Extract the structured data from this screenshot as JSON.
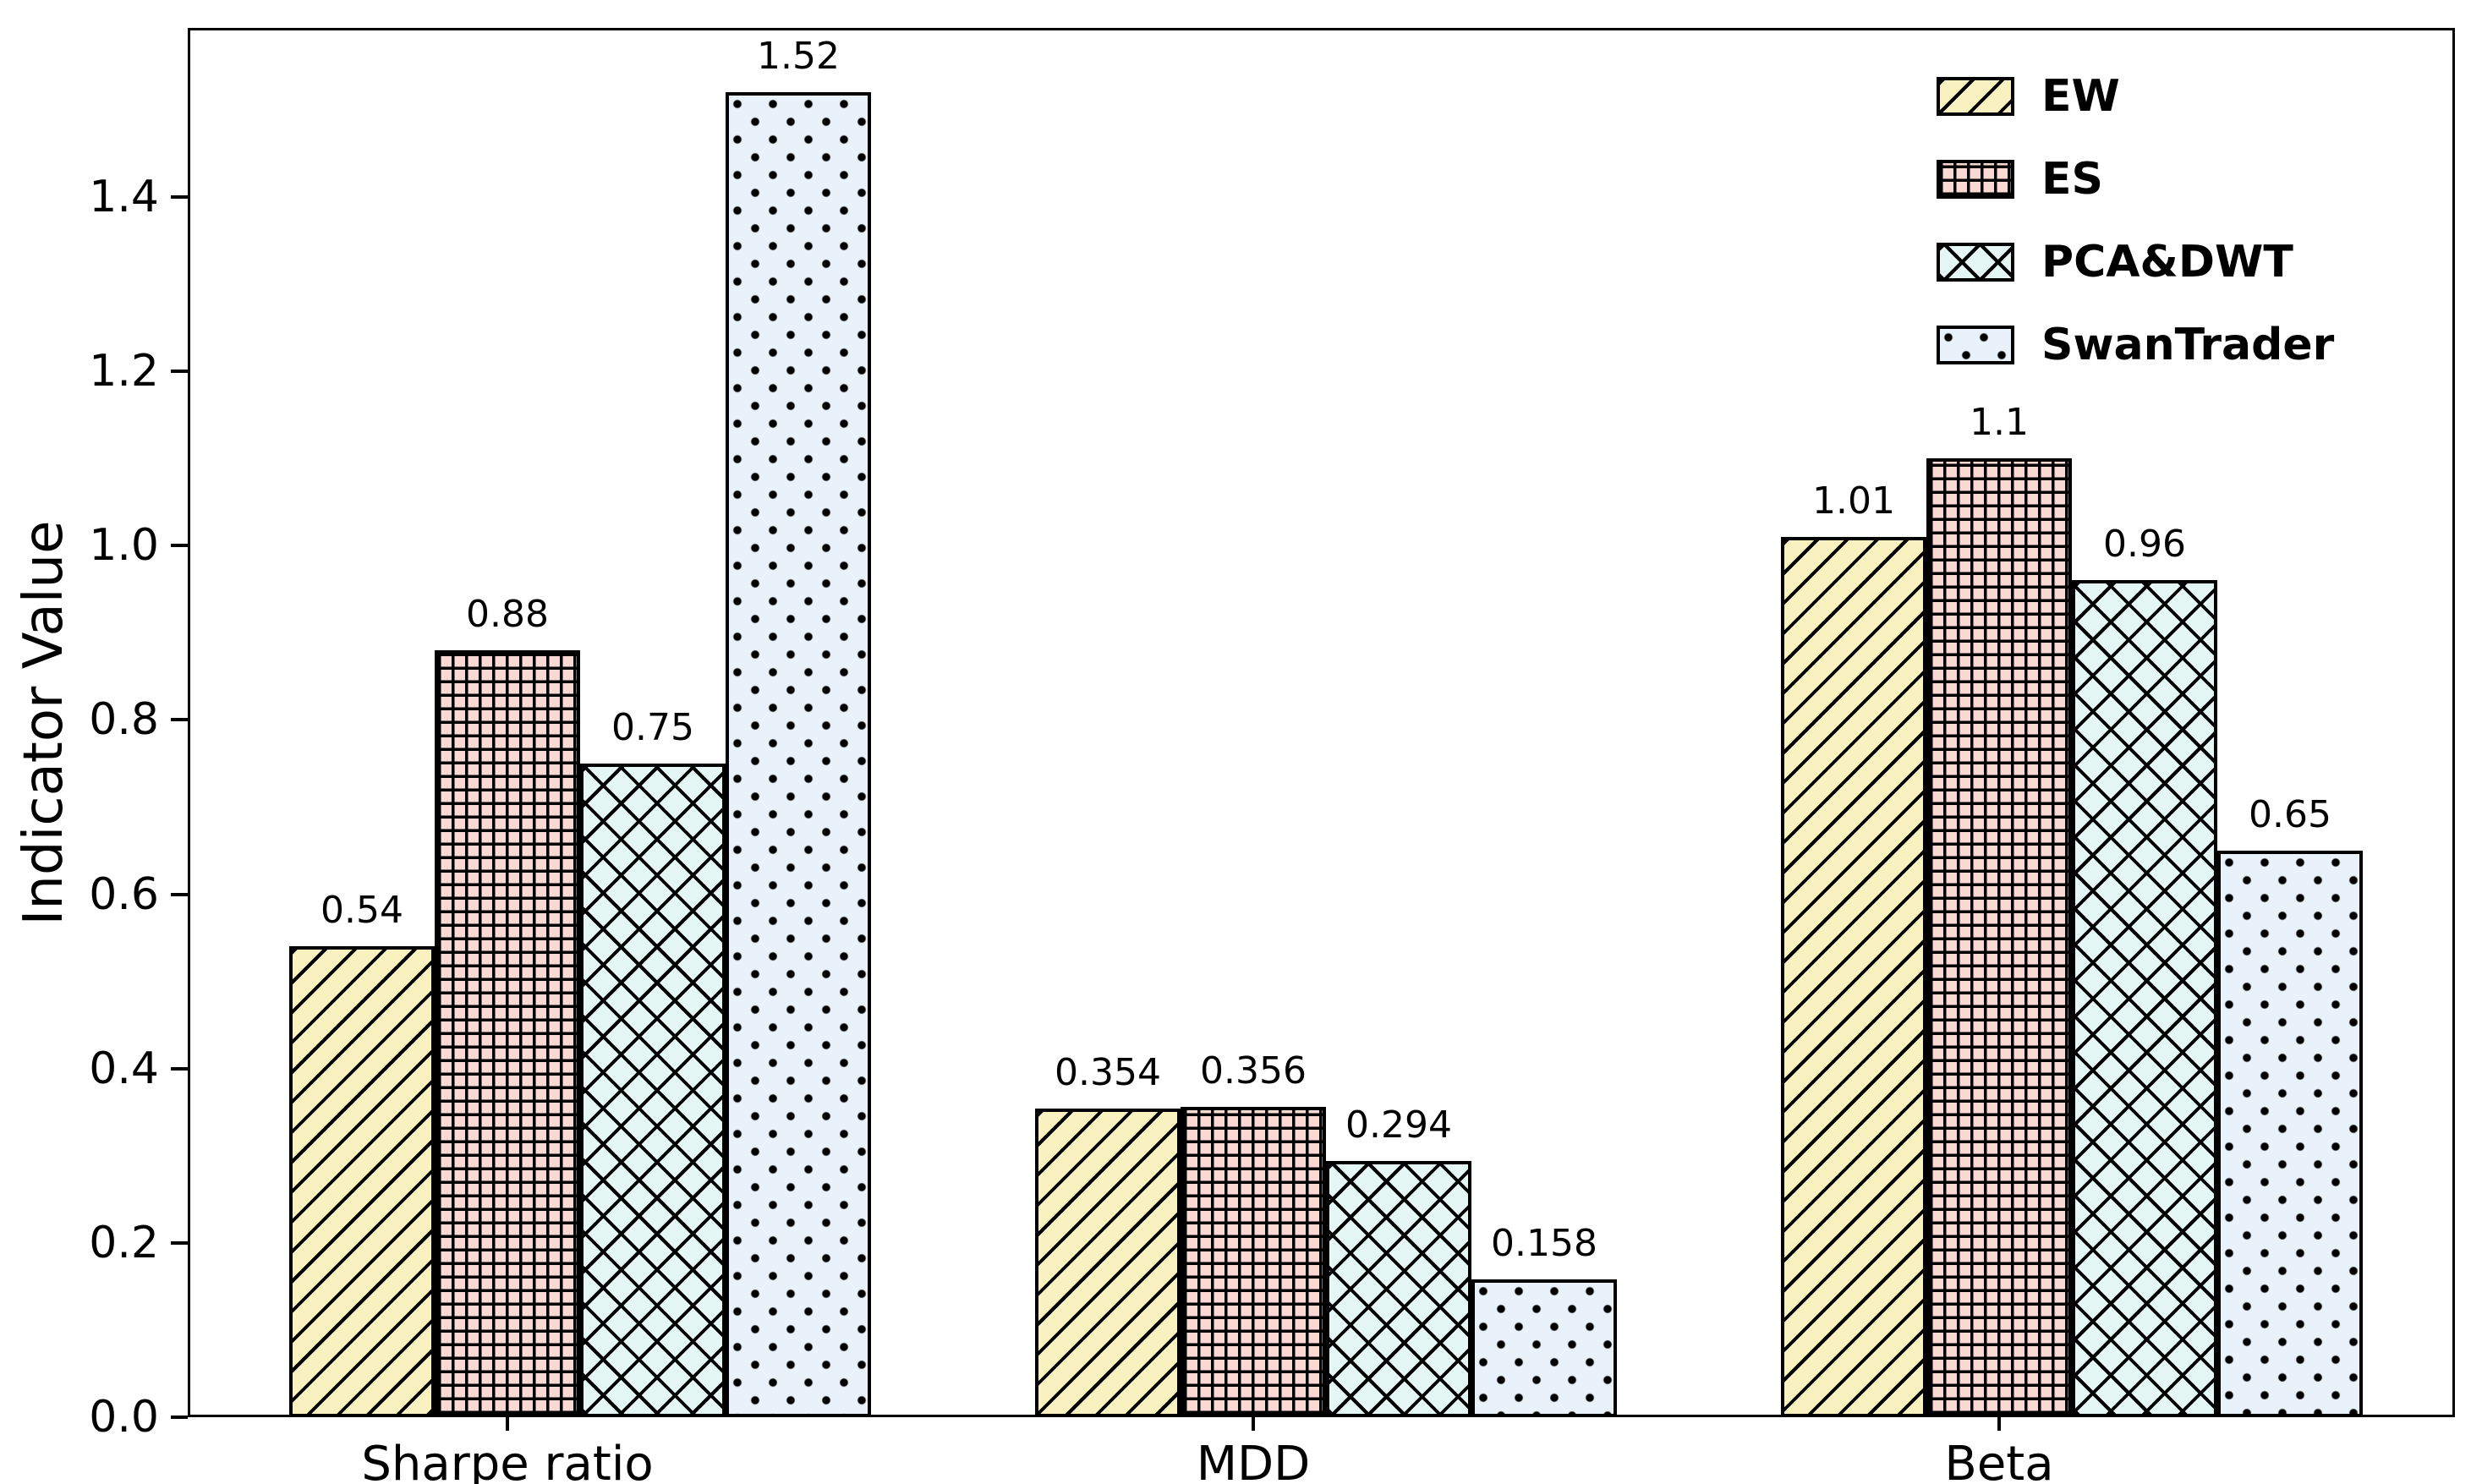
{
  "figure": {
    "background": "#ffffff",
    "border_color": "#000000"
  },
  "axes": {
    "ylabel": "Indicator Value",
    "xlabel": "",
    "y_ticks": [
      {
        "label": "0.0",
        "value": 0.0
      },
      {
        "label": "0.2",
        "value": 0.2
      },
      {
        "label": "0.4",
        "value": 0.4
      },
      {
        "label": "0.6",
        "value": 0.6
      },
      {
        "label": "0.8",
        "value": 0.8
      },
      {
        "label": "1.0",
        "value": 1.0
      },
      {
        "label": "1.2",
        "value": 1.2
      },
      {
        "label": "1.4",
        "value": 1.4
      }
    ]
  },
  "chart_data": {
    "type": "bar",
    "title": "",
    "xlabel": "",
    "ylabel": "Indicator Value",
    "categories": [
      "Sharpe ratio",
      "MDD",
      "Beta"
    ],
    "series": [
      {
        "name": "EW",
        "values": [
          0.54,
          0.354,
          1.01
        ],
        "value_labels": [
          "0.54",
          "0.354",
          "1.01"
        ],
        "fill_color": "#FAF1C0",
        "edge_color": "#000000",
        "hatch": "diagonal"
      },
      {
        "name": "ES",
        "values": [
          0.88,
          0.356,
          1.1
        ],
        "value_labels": [
          "0.88",
          "0.356",
          "1.1"
        ],
        "fill_color": "#FAD9D3",
        "edge_color": "#000000",
        "hatch": "grid"
      },
      {
        "name": "PCA&DWT",
        "values": [
          0.75,
          0.294,
          0.96
        ],
        "value_labels": [
          "0.75",
          "0.294",
          "0.96"
        ],
        "fill_color": "#E4F7F4",
        "edge_color": "#000000",
        "hatch": "cross"
      },
      {
        "name": "SwanTrader",
        "values": [
          1.52,
          0.158,
          0.65
        ],
        "value_labels": [
          "1.52",
          "0.158",
          "0.65"
        ],
        "fill_color": "#E9F1FA",
        "edge_color": "#000000",
        "hatch": "dots"
      }
    ],
    "ylim": [
      0,
      1.594
    ],
    "grid": false,
    "legend_position": "upper right",
    "legend_entries": [
      "EW",
      "ES",
      "PCA&DWT",
      "SwanTrader"
    ]
  }
}
